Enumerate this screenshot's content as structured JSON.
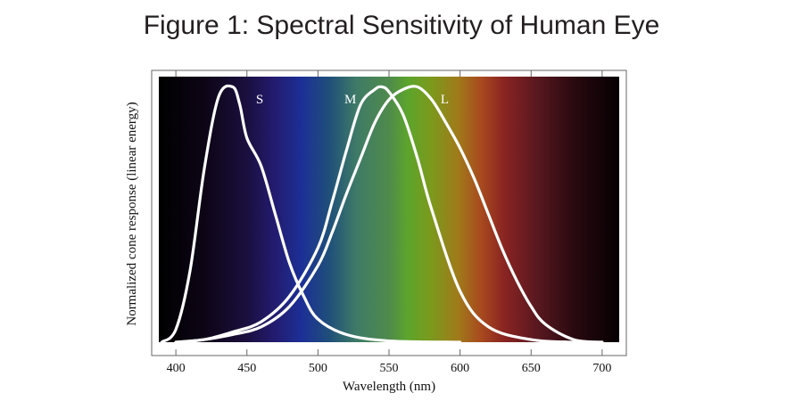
{
  "title": "Figure 1: Spectral Sensitivity of Human Eye",
  "chart_data": {
    "type": "line",
    "xlabel": "Wavelength (nm)",
    "ylabel": "Normalized cone response (linear energy)",
    "xlim": [
      388,
      712
    ],
    "ylim": [
      0,
      1.04
    ],
    "x_ticks": [
      400,
      450,
      500,
      550,
      600,
      650,
      700
    ],
    "series": [
      {
        "name": "S",
        "x": [
          390,
          400,
          410,
          420,
          430,
          440,
          445,
          450,
          460,
          470,
          480,
          490,
          500,
          520,
          550,
          600
        ],
        "y": [
          0.0,
          0.05,
          0.28,
          0.68,
          0.96,
          1.0,
          0.93,
          0.8,
          0.69,
          0.5,
          0.31,
          0.18,
          0.09,
          0.03,
          0.005,
          0.0
        ]
      },
      {
        "name": "M",
        "x": [
          400,
          420,
          440,
          460,
          480,
          500,
          510,
          520,
          530,
          540,
          545,
          550,
          560,
          570,
          580,
          600,
          620,
          650,
          680,
          700
        ],
        "y": [
          0.0,
          0.01,
          0.04,
          0.08,
          0.18,
          0.37,
          0.55,
          0.75,
          0.93,
          0.99,
          1.0,
          0.98,
          0.89,
          0.72,
          0.52,
          0.2,
          0.06,
          0.01,
          0.0,
          0.0
        ]
      },
      {
        "name": "L",
        "x": [
          400,
          420,
          440,
          460,
          480,
          500,
          510,
          520,
          530,
          540,
          550,
          560,
          570,
          580,
          590,
          600,
          610,
          620,
          630,
          640,
          650,
          660,
          680,
          700
        ],
        "y": [
          0.0,
          0.01,
          0.03,
          0.06,
          0.14,
          0.3,
          0.43,
          0.58,
          0.72,
          0.86,
          0.95,
          0.99,
          1.0,
          0.95,
          0.86,
          0.76,
          0.64,
          0.5,
          0.36,
          0.24,
          0.14,
          0.07,
          0.01,
          0.0
        ]
      }
    ],
    "background": "visible spectrum gradient (black at ends, violet-blue-green-yellow-red)",
    "colors": {
      "curve": "#ffffff",
      "frame": "#555555"
    }
  }
}
